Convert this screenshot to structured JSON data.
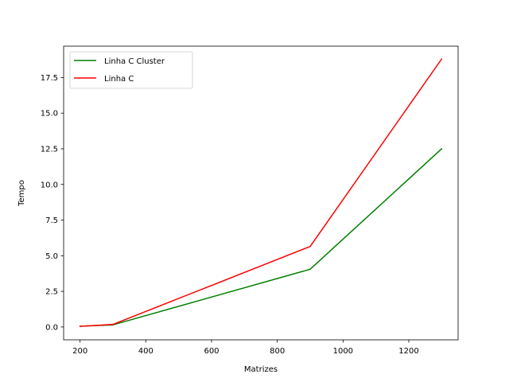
{
  "chart_data": {
    "type": "line",
    "title": "",
    "xlabel": "Matrizes",
    "ylabel": "Tempo",
    "xlim": [
      150,
      1350
    ],
    "ylim": [
      -0.9,
      19.7
    ],
    "xticks": [
      200,
      400,
      600,
      800,
      1000,
      1200
    ],
    "yticks": [
      0.0,
      2.5,
      5.0,
      7.5,
      10.0,
      12.5,
      15.0,
      17.5
    ],
    "x_tick_labels": [
      "200",
      "400",
      "600",
      "800",
      "1000",
      "1200"
    ],
    "y_tick_labels": [
      "0.0",
      "2.5",
      "5.0",
      "7.5",
      "10.0",
      "12.5",
      "15.0",
      "17.5"
    ],
    "grid": false,
    "legend_position": "upper-left",
    "series": [
      {
        "name": "Linha C Cluster",
        "color": "#008000",
        "x": [
          200,
          300,
          900,
          1300
        ],
        "y": [
          0.05,
          0.15,
          4.05,
          12.5
        ]
      },
      {
        "name": "Linha C",
        "color": "#ff0000",
        "x": [
          200,
          300,
          900,
          1300
        ],
        "y": [
          0.05,
          0.18,
          5.65,
          18.8
        ]
      }
    ]
  }
}
